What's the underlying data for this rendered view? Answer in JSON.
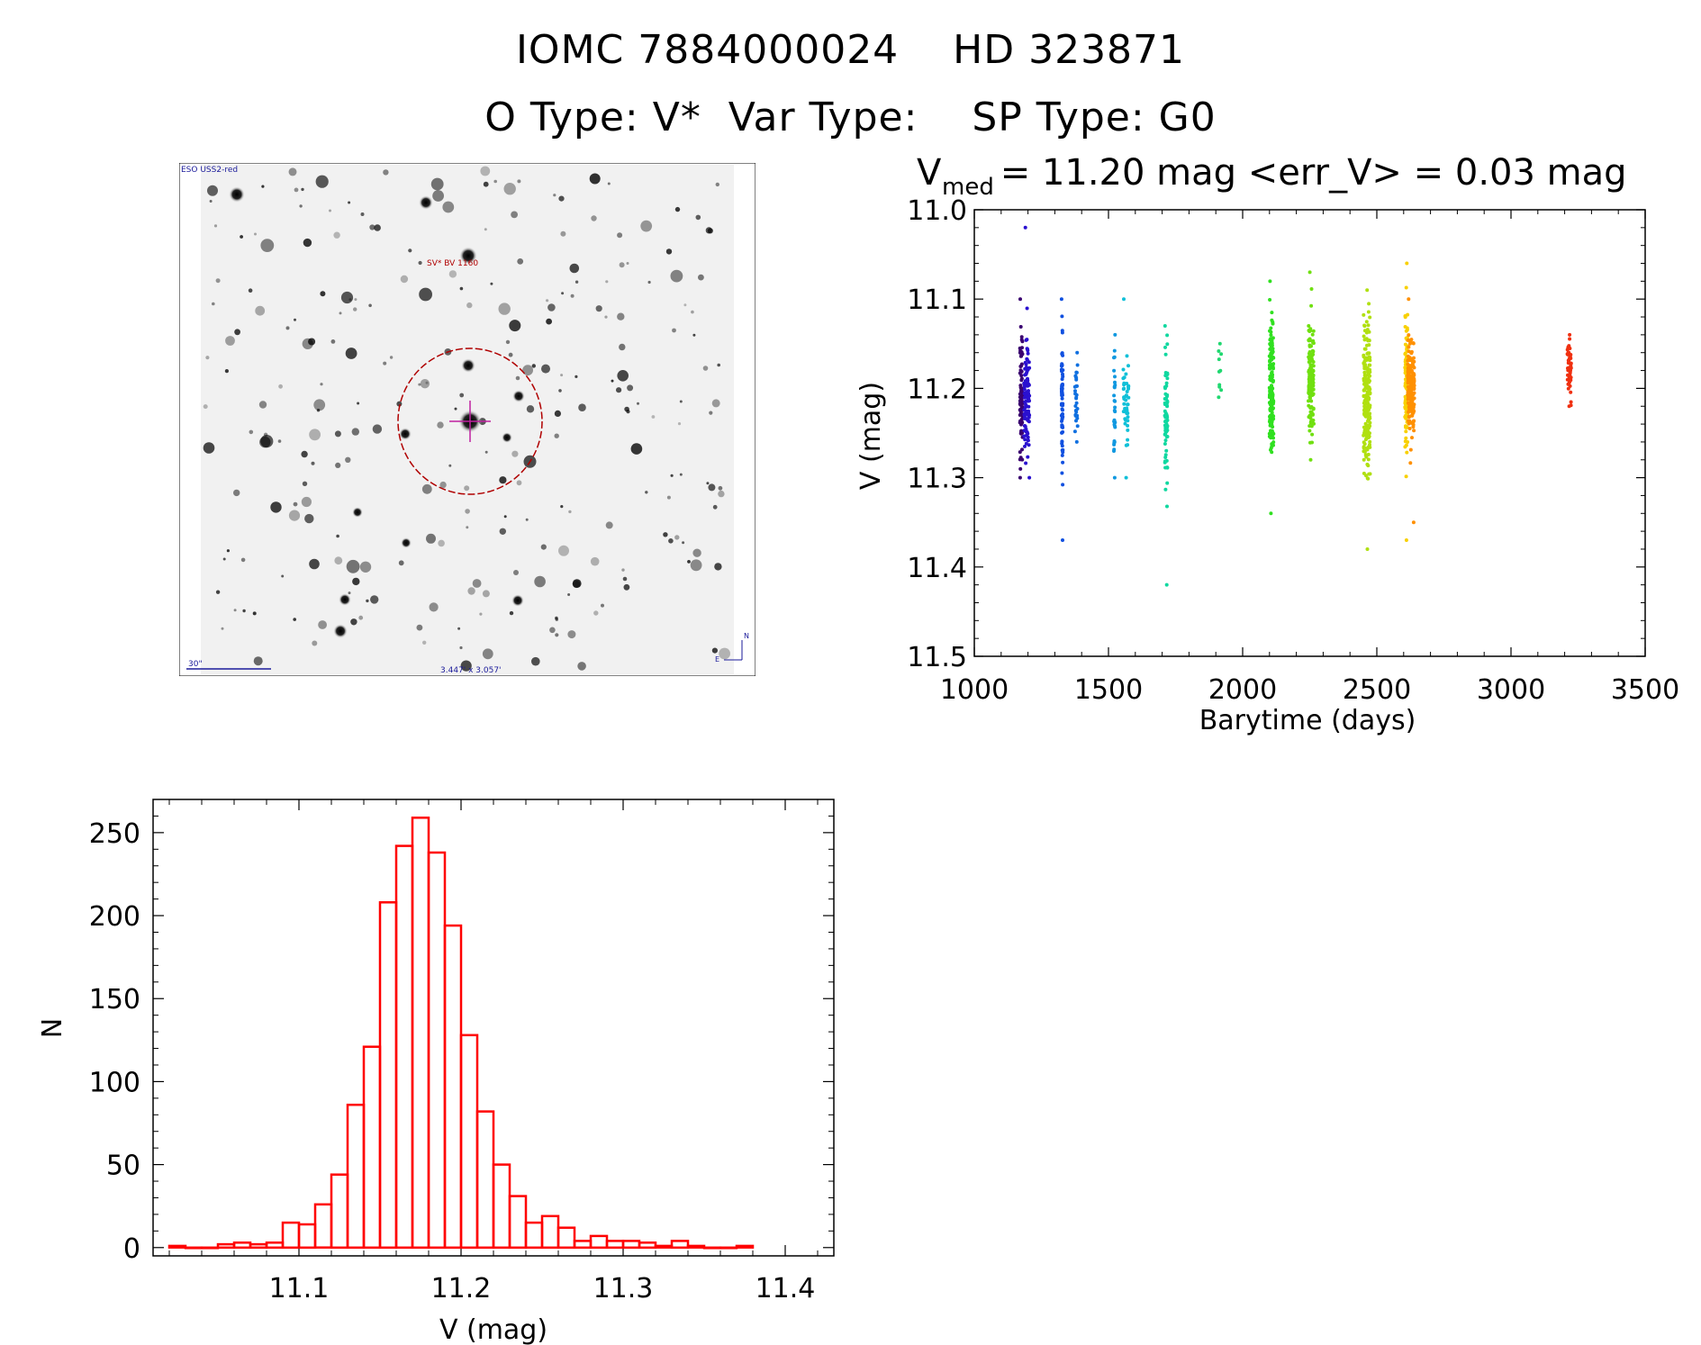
{
  "header": {
    "title_line1": "IOMC 7884000024    HD 323871",
    "title_line2": "O Type: V*  Var Type:    SP Type: G0"
  },
  "sky_image": {
    "survey_label": "ESO USS2-red",
    "object_label": "SV* BV 1160",
    "scale_label": "30\"",
    "fov_label": "3.447' x 3.057'",
    "compass_n": "N",
    "compass_e": "E"
  },
  "chart_data": [
    {
      "type": "scatter",
      "title_main": "V",
      "title_sub": "med",
      "title_rest": " = 11.20 mag <err_V> = 0.03 mag",
      "xlabel": "Barytime (days)",
      "ylabel": "V (mag)",
      "xlim": [
        1000,
        3500
      ],
      "ylim": [
        11.0,
        11.5
      ],
      "y_inverted": true,
      "x_ticks": [
        "1000",
        "1500",
        "2000",
        "2500",
        "3000",
        "3500"
      ],
      "y_ticks": [
        "11.0",
        "11.1",
        "11.2",
        "11.3",
        "11.4",
        "11.5"
      ],
      "groups": [
        {
          "x": [
            1170,
            1180
          ],
          "y_center": 11.21,
          "y_spread": 0.03,
          "y_min": 11.1,
          "y_max": 11.3,
          "n": 90,
          "color": "#3a0070"
        },
        {
          "x": [
            1185,
            1205
          ],
          "y_center": 11.21,
          "y_spread": 0.035,
          "y_min": 11.02,
          "y_max": 11.3,
          "n": 110,
          "color": "#2a10d0"
        },
        {
          "x": [
            1325,
            1330
          ],
          "y_center": 11.21,
          "y_spread": 0.04,
          "y_min": 11.1,
          "y_max": 11.37,
          "n": 70,
          "color": "#1050e0"
        },
        {
          "x": [
            1375,
            1385
          ],
          "y_center": 11.21,
          "y_spread": 0.02,
          "y_min": 11.16,
          "y_max": 11.26,
          "n": 30,
          "color": "#1070e0"
        },
        {
          "x": [
            1520,
            1525
          ],
          "y_center": 11.22,
          "y_spread": 0.03,
          "y_min": 11.14,
          "y_max": 11.3,
          "n": 30,
          "color": "#1098e0"
        },
        {
          "x": [
            1555,
            1575
          ],
          "y_center": 11.21,
          "y_spread": 0.02,
          "y_min": 11.1,
          "y_max": 11.3,
          "n": 50,
          "color": "#10c0d8"
        },
        {
          "x": [
            1710,
            1720
          ],
          "y_center": 11.23,
          "y_spread": 0.04,
          "y_min": 11.13,
          "y_max": 11.42,
          "n": 70,
          "color": "#10d8a0"
        },
        {
          "x": [
            1910,
            1920
          ],
          "y_center": 11.18,
          "y_spread": 0.02,
          "y_min": 11.15,
          "y_max": 11.21,
          "n": 10,
          "color": "#20d870"
        },
        {
          "x": [
            2100,
            2115
          ],
          "y_center": 11.2,
          "y_spread": 0.04,
          "y_min": 11.08,
          "y_max": 11.34,
          "n": 160,
          "color": "#30e020"
        },
        {
          "x": [
            2245,
            2265
          ],
          "y_center": 11.19,
          "y_spread": 0.03,
          "y_min": 11.07,
          "y_max": 11.28,
          "n": 150,
          "color": "#70e010"
        },
        {
          "x": [
            2450,
            2475
          ],
          "y_center": 11.21,
          "y_spread": 0.04,
          "y_min": 11.09,
          "y_max": 11.38,
          "n": 220,
          "color": "#b0e010"
        },
        {
          "x": [
            2605,
            2615
          ],
          "y_center": 11.2,
          "y_spread": 0.04,
          "y_min": 11.06,
          "y_max": 11.37,
          "n": 100,
          "color": "#f8d000"
        },
        {
          "x": [
            2615,
            2640
          ],
          "y_center": 11.2,
          "y_spread": 0.025,
          "y_min": 11.1,
          "y_max": 11.35,
          "n": 200,
          "color": "#ff9000"
        },
        {
          "x": [
            3210,
            3225
          ],
          "y_center": 11.18,
          "y_spread": 0.015,
          "y_min": 11.14,
          "y_max": 11.22,
          "n": 45,
          "color": "#f03010"
        }
      ]
    },
    {
      "type": "bar",
      "subtype": "histogram",
      "xlabel": "V (mag)",
      "ylabel": "N",
      "xlim": [
        11.01,
        11.43
      ],
      "ylim": [
        -5,
        270
      ],
      "x_ticks": [
        "11.1",
        "11.2",
        "11.3",
        "11.4"
      ],
      "y_ticks": [
        "0",
        "50",
        "100",
        "150",
        "200",
        "250"
      ],
      "bin_start": 11.02,
      "bin_width": 0.01,
      "values": [
        1,
        0,
        0,
        2,
        3,
        2,
        3,
        15,
        14,
        26,
        44,
        86,
        121,
        208,
        242,
        259,
        238,
        194,
        128,
        82,
        50,
        31,
        15,
        19,
        12,
        4,
        7,
        4,
        4,
        3,
        1,
        4,
        1,
        0,
        0,
        1
      ],
      "color": "#ff0000"
    }
  ]
}
